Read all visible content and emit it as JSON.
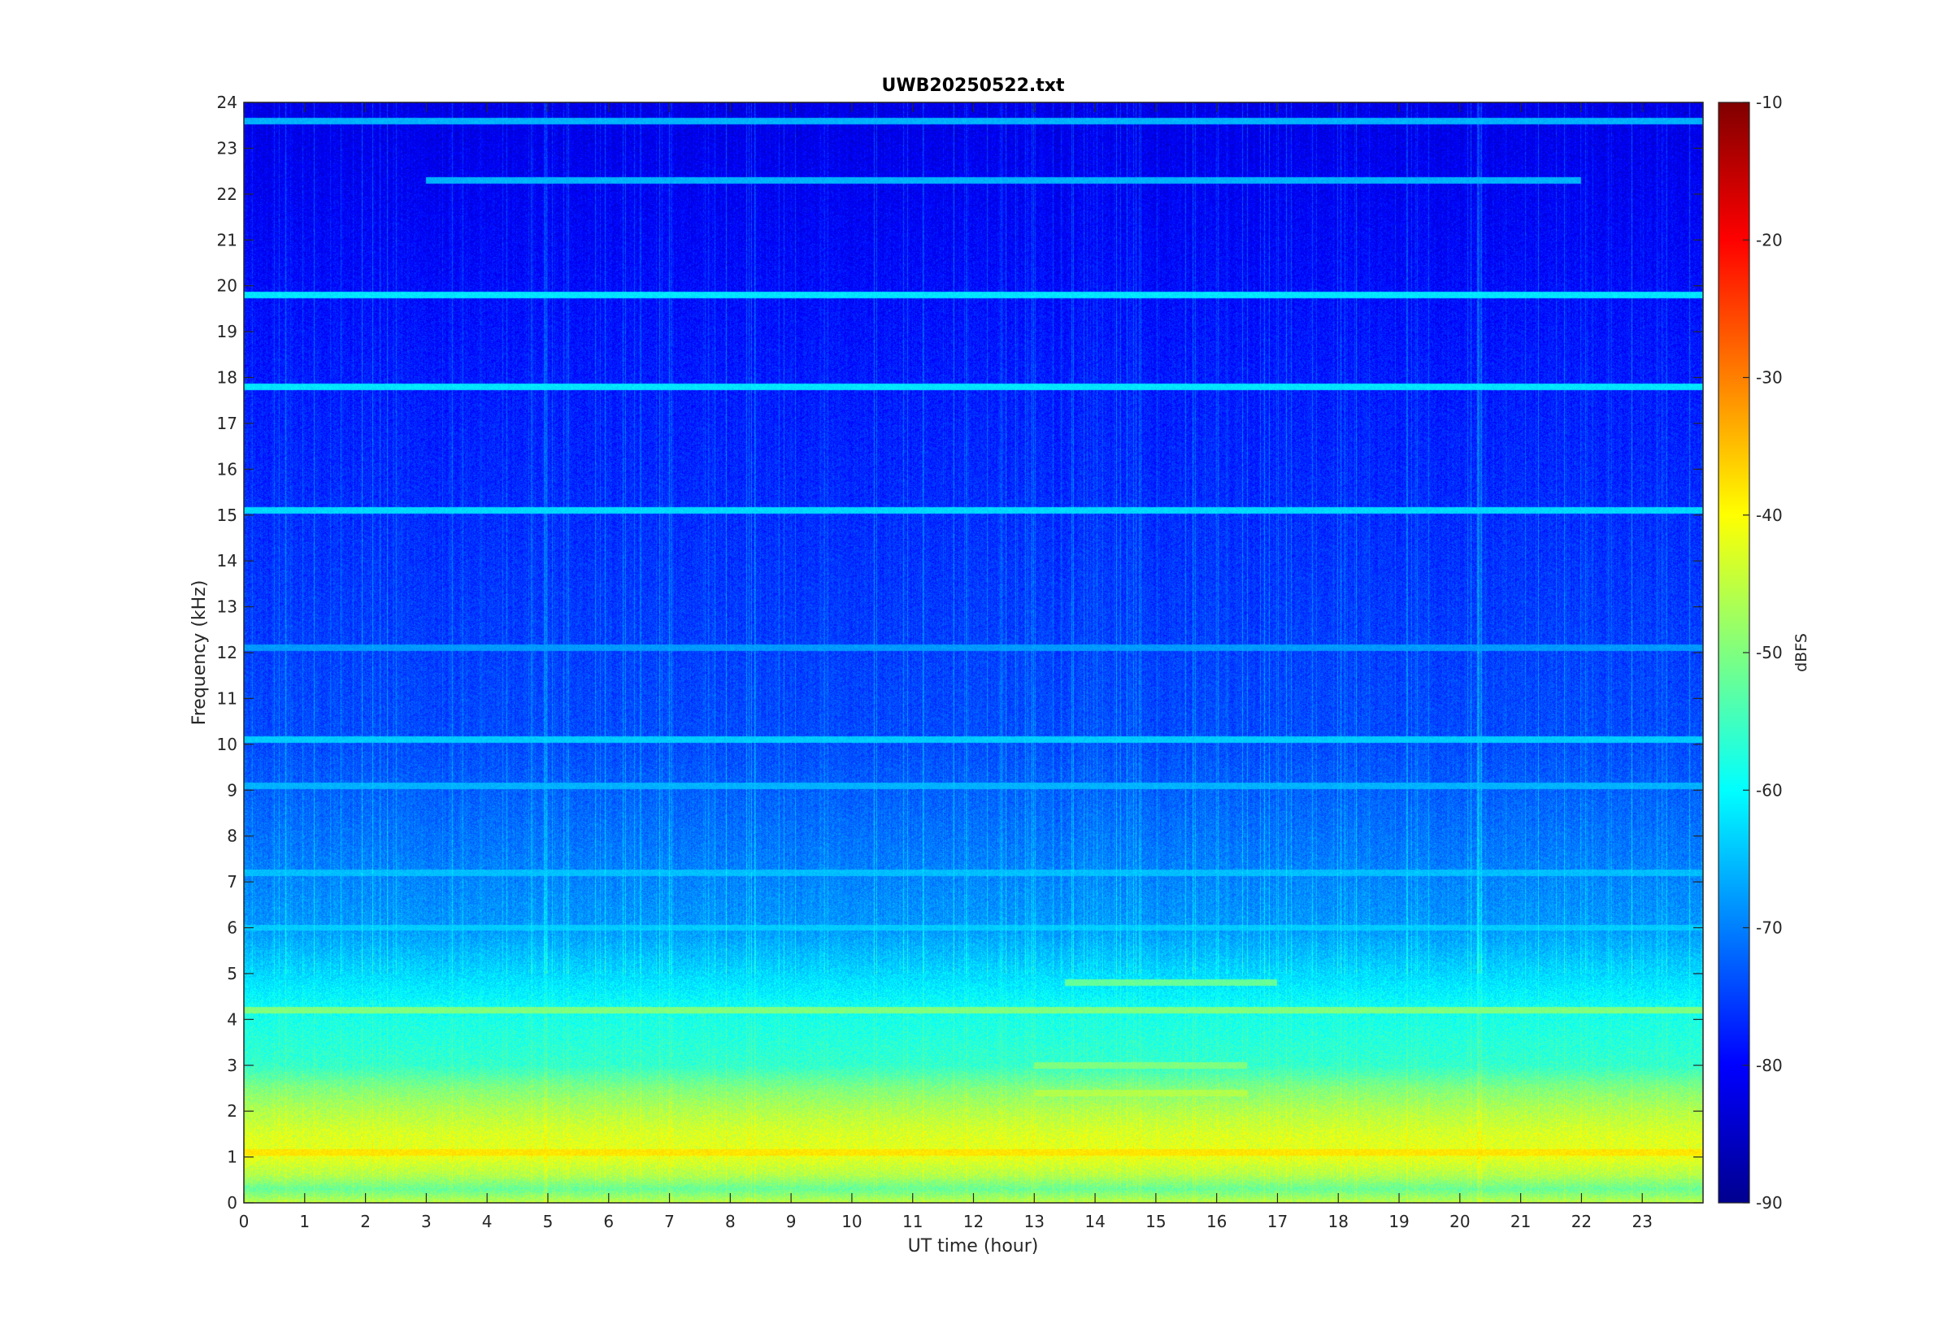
{
  "chart_data": {
    "type": "heatmap",
    "title": "UWB20250522.txt",
    "xlabel": "UT time (hour)",
    "ylabel": "Frequency (kHz)",
    "xlim": [
      0,
      24
    ],
    "ylim": [
      0,
      24
    ],
    "x_ticks": [
      "0",
      "1",
      "2",
      "3",
      "4",
      "5",
      "6",
      "7",
      "8",
      "9",
      "10",
      "11",
      "12",
      "13",
      "14",
      "15",
      "16",
      "17",
      "18",
      "19",
      "20",
      "21",
      "22",
      "23"
    ],
    "y_ticks": [
      "0",
      "1",
      "2",
      "3",
      "4",
      "5",
      "6",
      "7",
      "8",
      "9",
      "10",
      "11",
      "12",
      "13",
      "14",
      "15",
      "16",
      "17",
      "18",
      "19",
      "20",
      "21",
      "22",
      "23",
      "24"
    ],
    "colormap": "jet",
    "colorbar": {
      "label": "dBFS",
      "range": [
        -90,
        -10
      ],
      "ticks": [
        "-10",
        "-20",
        "-30",
        "-40",
        "-50",
        "-60",
        "-70",
        "-80",
        "-90"
      ]
    },
    "level_profile_by_frequency_kHz": [
      {
        "f": 0.0,
        "dBFS": -45
      },
      {
        "f": 0.3,
        "dBFS": -52
      },
      {
        "f": 0.6,
        "dBFS": -46
      },
      {
        "f": 1.0,
        "dBFS": -42
      },
      {
        "f": 1.5,
        "dBFS": -43
      },
      {
        "f": 2.0,
        "dBFS": -46
      },
      {
        "f": 2.5,
        "dBFS": -50
      },
      {
        "f": 3.0,
        "dBFS": -56
      },
      {
        "f": 4.0,
        "dBFS": -58
      },
      {
        "f": 5.0,
        "dBFS": -63
      },
      {
        "f": 6.0,
        "dBFS": -68
      },
      {
        "f": 8.0,
        "dBFS": -71
      },
      {
        "f": 10.0,
        "dBFS": -74
      },
      {
        "f": 14.0,
        "dBFS": -76
      },
      {
        "f": 18.0,
        "dBFS": -78
      },
      {
        "f": 21.0,
        "dBFS": -80
      },
      {
        "f": 24.0,
        "dBFS": -82
      }
    ],
    "persistent_lines_kHz": [
      {
        "f": 19.8,
        "dBFS": -62,
        "t": [
          0,
          24
        ]
      },
      {
        "f": 17.8,
        "dBFS": -62,
        "t": [
          0,
          24
        ]
      },
      {
        "f": 23.6,
        "dBFS": -66,
        "t": [
          0,
          24
        ]
      },
      {
        "f": 22.3,
        "dBFS": -66,
        "t": [
          3,
          22
        ]
      },
      {
        "f": 15.1,
        "dBFS": -63,
        "t": [
          0,
          24
        ]
      },
      {
        "f": 10.1,
        "dBFS": -64,
        "t": [
          0,
          24
        ]
      },
      {
        "f": 12.1,
        "dBFS": -68,
        "t": [
          0,
          24
        ]
      },
      {
        "f": 9.1,
        "dBFS": -66,
        "t": [
          0,
          24
        ]
      },
      {
        "f": 7.2,
        "dBFS": -65,
        "t": [
          0,
          24
        ]
      },
      {
        "f": 6.0,
        "dBFS": -64,
        "t": [
          0,
          24
        ]
      },
      {
        "f": 4.8,
        "dBFS": -52,
        "t": [
          13.5,
          17
        ]
      },
      {
        "f": 4.2,
        "dBFS": -50,
        "t": [
          0,
          24
        ]
      },
      {
        "f": 3.0,
        "dBFS": -50,
        "t": [
          13,
          16.5
        ]
      },
      {
        "f": 2.4,
        "dBFS": -46,
        "t": [
          13,
          16.5
        ]
      },
      {
        "f": 1.1,
        "dBFS": -38,
        "t": [
          0,
          24
        ]
      }
    ]
  }
}
